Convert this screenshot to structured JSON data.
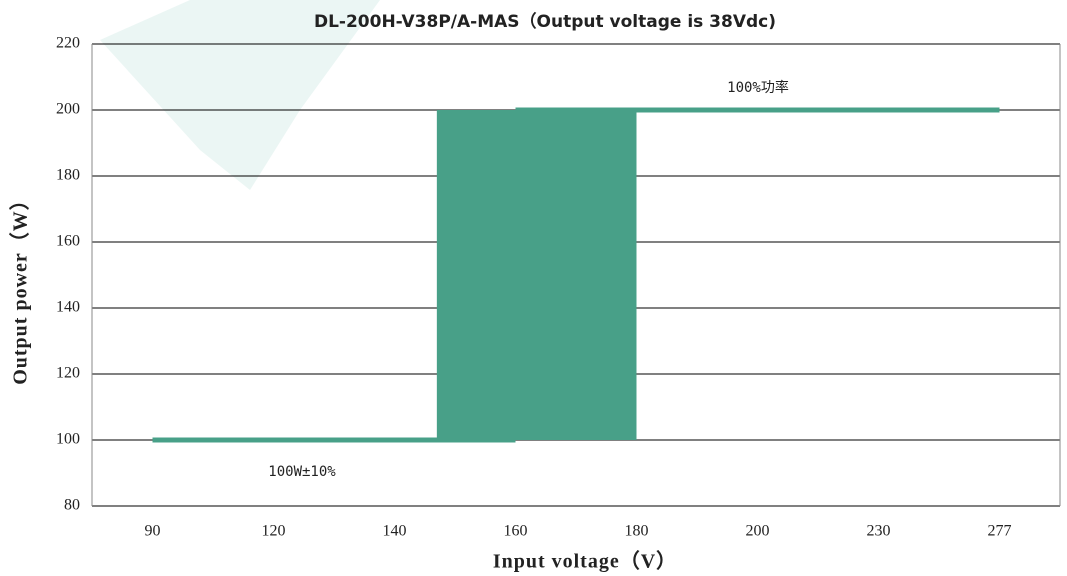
{
  "chart_data": {
    "type": "range-step",
    "title": "DL-200H-V38P/A-MAS（Output voltage is 38Vdc)",
    "x_label": "Input voltage（V）",
    "y_label": "Output power（W）",
    "categories": [
      "90",
      "120",
      "140",
      "160",
      "180",
      "200",
      "230",
      "277"
    ],
    "series": [
      {
        "values": [
          100,
          100,
          100,
          100,
          100,
          null,
          null,
          null
        ]
      },
      {
        "values": [
          null,
          null,
          null,
          200,
          200,
          200,
          200,
          200
        ]
      }
    ],
    "color": "#48a088",
    "ylim": [
      80,
      220
    ],
    "yticks": [
      80,
      100,
      120,
      140,
      160,
      180,
      200,
      220
    ],
    "grid": true,
    "annotations": [
      "100%功率",
      "100W±10%"
    ]
  }
}
